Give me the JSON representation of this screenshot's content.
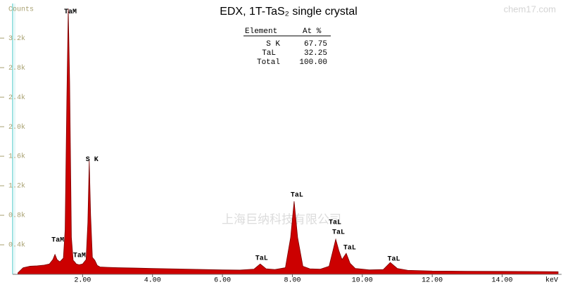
{
  "chart_data": {
    "type": "area",
    "title": "EDX, 1T-TaS₂ single crystal",
    "x_label": "keV",
    "y_label": "Counts",
    "color": "#cc0000",
    "x": [
      0.15,
      0.3,
      0.5,
      0.7,
      0.9,
      1.05,
      1.15,
      1.21,
      1.27,
      1.35,
      1.45,
      1.5,
      1.55,
      1.59,
      1.63,
      1.68,
      1.73,
      1.77,
      1.82,
      1.9,
      2.0,
      2.1,
      2.15,
      2.19,
      2.23,
      2.28,
      2.35,
      2.42,
      2.5,
      2.7,
      3.0,
      3.5,
      4.0,
      4.5,
      5.0,
      5.5,
      6.0,
      6.5,
      6.9,
      7.08,
      7.25,
      7.5,
      7.8,
      7.95,
      8.05,
      8.15,
      8.3,
      8.5,
      8.8,
      9.05,
      9.15,
      9.24,
      9.33,
      9.42,
      9.54,
      9.65,
      9.8,
      10.2,
      10.6,
      10.8,
      11.0,
      11.3,
      12.0,
      13.0,
      14.0,
      15.0,
      15.6
    ],
    "values": [
      20,
      90,
      110,
      115,
      125,
      140,
      200,
      270,
      200,
      170,
      220,
      600,
      2400,
      3600,
      2600,
      500,
      190,
      170,
      140,
      130,
      140,
      200,
      700,
      1540,
      800,
      230,
      190,
      120,
      100,
      95,
      90,
      85,
      80,
      75,
      70,
      65,
      60,
      58,
      70,
      140,
      75,
      65,
      90,
      500,
      990,
      500,
      110,
      75,
      70,
      110,
      300,
      475,
      320,
      200,
      285,
      150,
      80,
      60,
      65,
      160,
      80,
      55,
      45,
      42,
      40,
      38,
      35
    ],
    "xlim": [
      0,
      15.7
    ],
    "ylim": [
      0,
      3640
    ],
    "xticks": [
      {
        "value": 2,
        "label": "2.00"
      },
      {
        "value": 4,
        "label": "4.00"
      },
      {
        "value": 6,
        "label": "6.00"
      },
      {
        "value": 8,
        "label": "8.00"
      },
      {
        "value": 10,
        "label": "10.00"
      },
      {
        "value": 12,
        "label": "12.00"
      },
      {
        "value": 14,
        "label": "14.00"
      }
    ],
    "yticks": [
      {
        "value": 400,
        "label": "0.4k"
      },
      {
        "value": 800,
        "label": "0.8k"
      },
      {
        "value": 1200,
        "label": "1.2k"
      },
      {
        "value": 1600,
        "label": "1.6k"
      },
      {
        "value": 2000,
        "label": "2.0k"
      },
      {
        "value": 2400,
        "label": "2.4k"
      },
      {
        "value": 2800,
        "label": "2.8k"
      },
      {
        "value": 3200,
        "label": "3.2k"
      }
    ],
    "annotations": [
      {
        "text": "TaM",
        "x": 1.65,
        "y": 3560
      },
      {
        "text": "TaM",
        "x": 1.29,
        "y": 467
      },
      {
        "text": "TaM",
        "x": 1.91,
        "y": 257
      },
      {
        "text": "S K",
        "x": 2.27,
        "y": 1560
      },
      {
        "text": "TaL",
        "x": 7.12,
        "y": 219
      },
      {
        "text": "TaL",
        "x": 8.13,
        "y": 1076
      },
      {
        "text": "TaL",
        "x": 9.22,
        "y": 705
      },
      {
        "text": "TaL",
        "x": 9.32,
        "y": 571
      },
      {
        "text": "TaL",
        "x": 9.64,
        "y": 362
      },
      {
        "text": "TaL",
        "x": 10.9,
        "y": 210
      }
    ],
    "table": {
      "header": [
        "Element",
        "At %"
      ],
      "rows": [
        [
          "S K",
          "67.75"
        ],
        [
          "TaL",
          "32.25"
        ],
        [
          "Total",
          "100.00"
        ]
      ]
    },
    "watermarks": [
      "上海巨纳科技有限公司",
      "chem17.com"
    ]
  }
}
